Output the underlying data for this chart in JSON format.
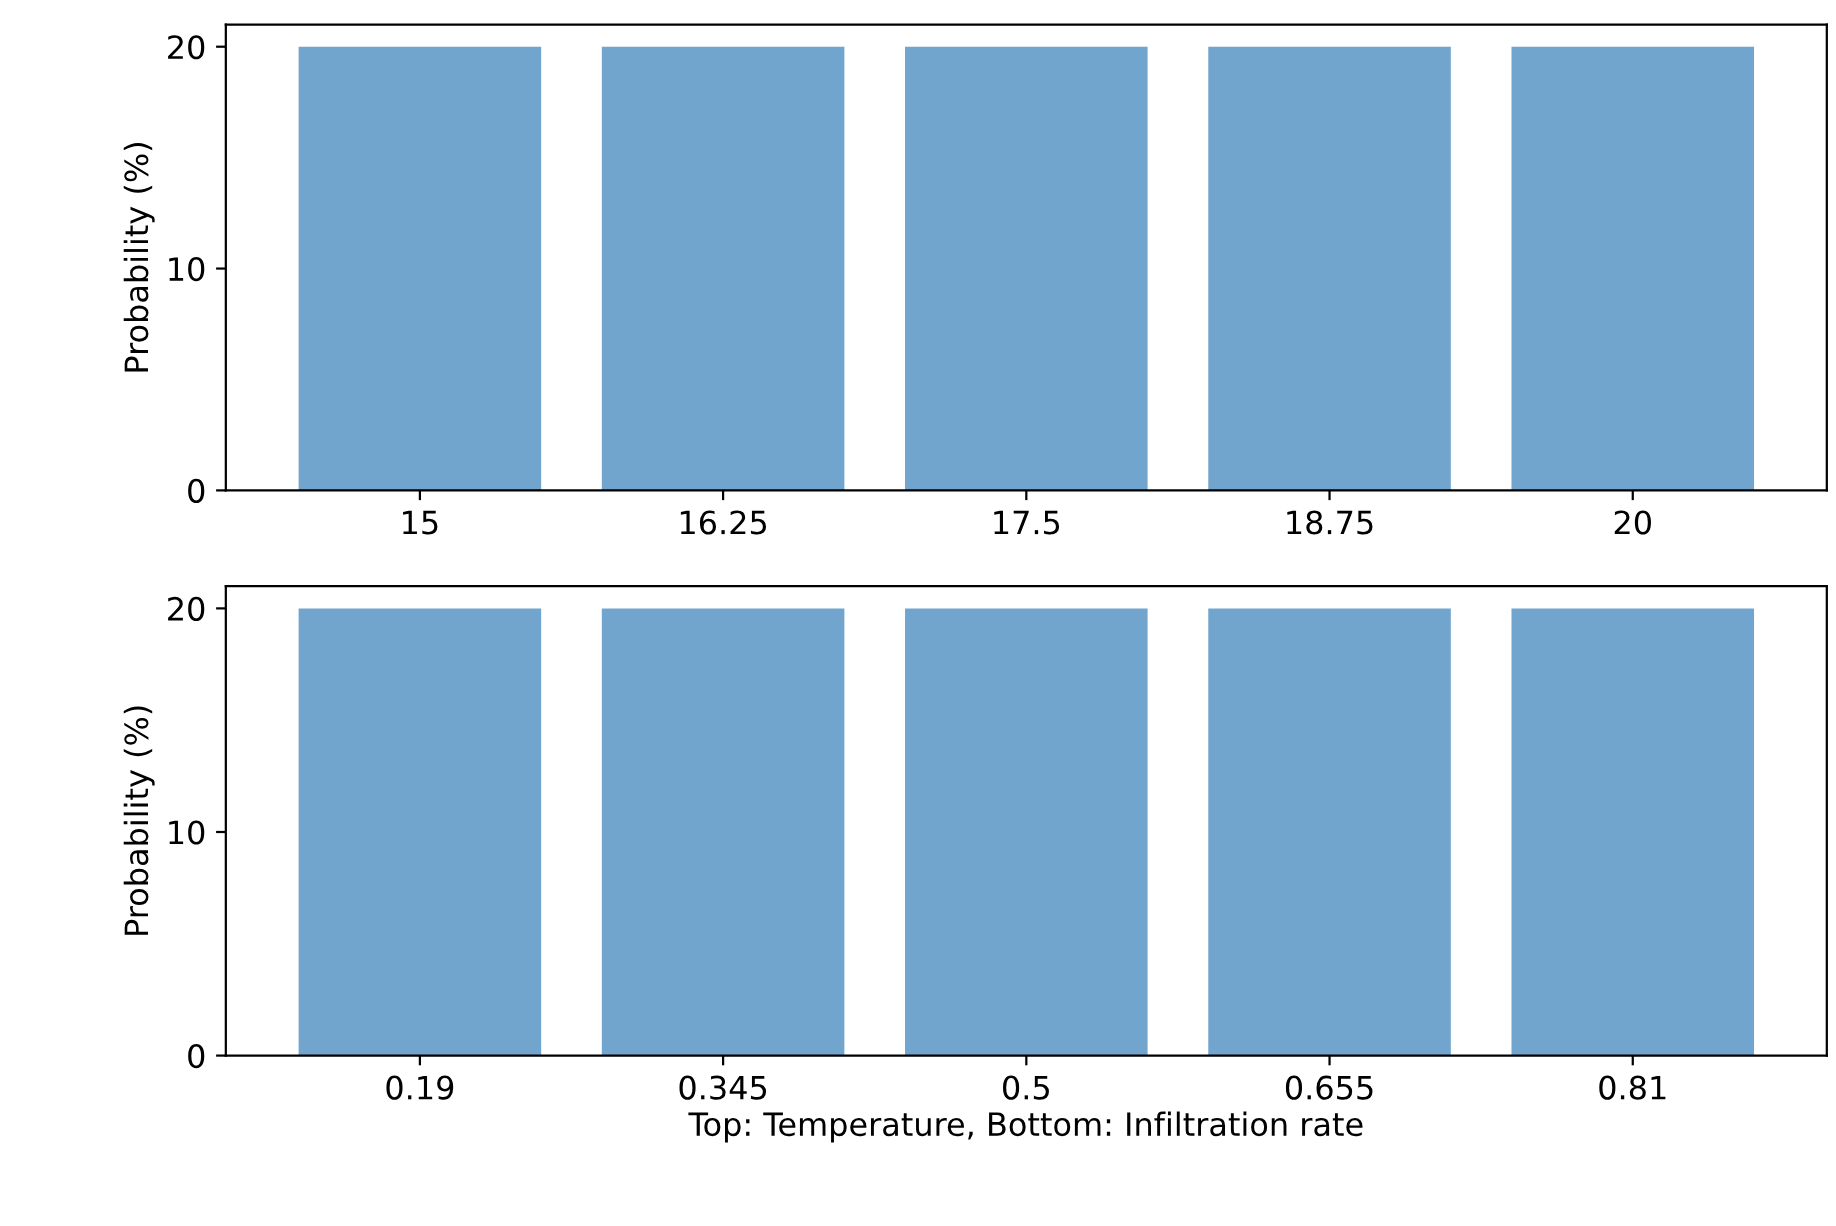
{
  "chart_data": [
    {
      "type": "bar",
      "categories": [
        "15",
        "16.25",
        "17.5",
        "18.75",
        "20"
      ],
      "values": [
        20,
        20,
        20,
        20,
        20
      ],
      "color": "#72a5ce",
      "ylabel": "Probability (%)",
      "ylim": [
        0,
        21
      ],
      "yticks": [
        0,
        10,
        20
      ],
      "grid": false,
      "legend": false
    },
    {
      "type": "bar",
      "categories": [
        "0.19",
        "0.345",
        "0.5",
        "0.655",
        "0.81"
      ],
      "values": [
        20,
        20,
        20,
        20,
        20
      ],
      "color": "#72a5ce",
      "ylabel": "Probability (%)",
      "xlabel": "Top: Temperature, Bottom: Infiltration rate",
      "ylim": [
        0,
        21
      ],
      "yticks": [
        0,
        10,
        20
      ],
      "grid": false,
      "legend": false
    }
  ]
}
